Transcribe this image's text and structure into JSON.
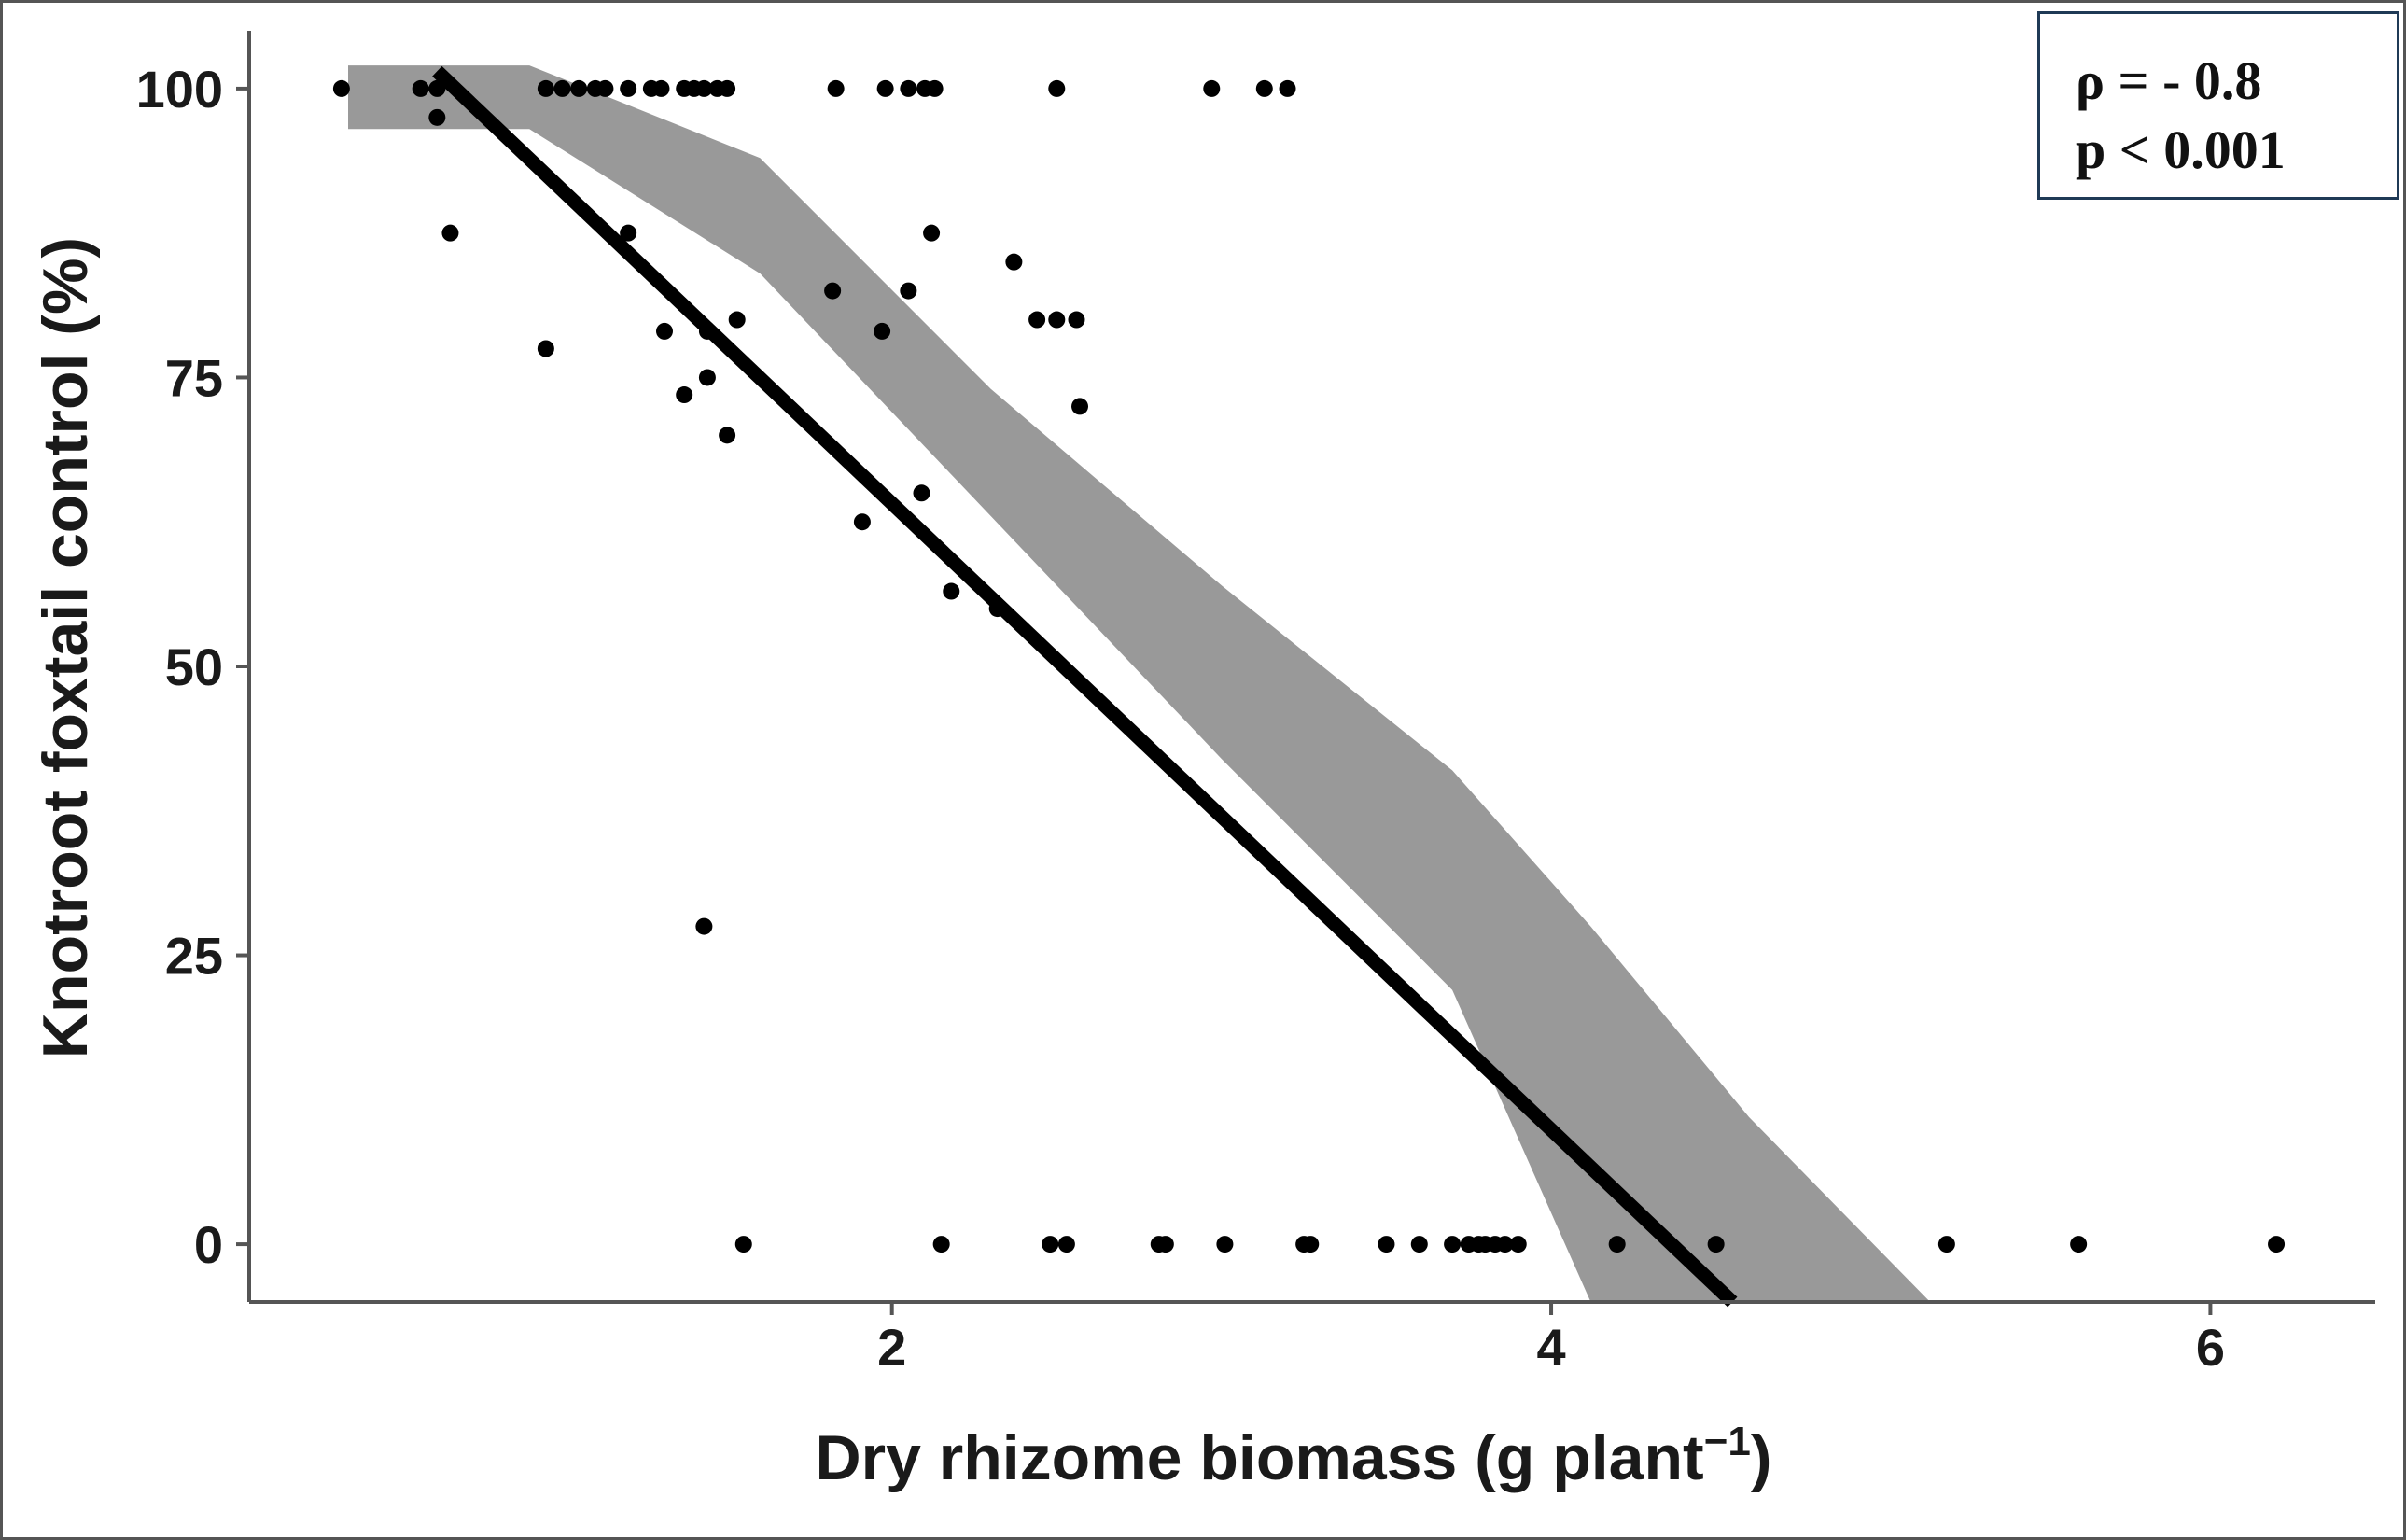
{
  "chart_data": {
    "type": "scatter",
    "title": "",
    "xlabel": "Dry rhizome biomass (g plant",
    "xlabel_superscript": "−1",
    "xlabel_suffix": ")",
    "ylabel": "Knotroot foxtail control (%)",
    "xlim": [
      0.05,
      6.5
    ],
    "ylim": [
      -5,
      105
    ],
    "x_ticks": [
      2,
      4,
      6
    ],
    "y_ticks": [
      0,
      25,
      50,
      75,
      100
    ],
    "x_tick_labels": [
      "2",
      "4",
      "6"
    ],
    "y_tick_labels": [
      "0",
      "25",
      "50",
      "75",
      "100"
    ],
    "grid": false,
    "annotation": {
      "line1": "ρ = - 0.8",
      "line2": "p < 0.001",
      "placement": "top-right"
    },
    "colors": {
      "points": "#000000",
      "fit_line": "#000000",
      "confidence_band": "#999999",
      "axis": "#555555",
      "box_border": "#1f3a56"
    },
    "series": [
      {
        "type": "scatter",
        "x": [
          0.33,
          0.57,
          0.62,
          0.95,
          1.0,
          1.05,
          1.1,
          1.13,
          1.2,
          1.27,
          1.3,
          1.37,
          1.4,
          1.43,
          1.47,
          1.5,
          1.83,
          1.98,
          2.05,
          2.1,
          2.13,
          2.5,
          2.97,
          3.13,
          3.2,
          0.62,
          0.66,
          0.95,
          1.2,
          1.31,
          1.44,
          1.44,
          1.37,
          1.5,
          1.53,
          1.43,
          1.82,
          1.91,
          1.97,
          2.05,
          2.09,
          2.12,
          2.18,
          2.32,
          2.37,
          2.44,
          2.5,
          2.56,
          2.57,
          1.55,
          2.15,
          2.48,
          2.53,
          2.81,
          2.83,
          3.01,
          3.25,
          3.27,
          3.5,
          3.6,
          3.7,
          3.75,
          3.78,
          3.8,
          3.83,
          3.86,
          3.9,
          4.2,
          4.5,
          5.2,
          5.6,
          6.2
        ],
        "y": [
          100,
          100,
          100,
          100,
          100,
          100,
          100,
          100,
          100,
          100,
          100,
          100,
          100,
          100,
          100,
          100,
          100,
          100,
          100,
          100,
          100,
          100,
          100,
          100,
          100,
          97.5,
          87.5,
          77.5,
          87.5,
          79,
          79,
          75,
          73.5,
          70,
          80,
          27.5,
          82.5,
          62.5,
          79,
          82.5,
          65,
          87.5,
          56.5,
          55,
          85,
          80,
          80,
          80,
          72.5,
          0,
          0,
          0,
          0,
          0,
          0,
          0,
          0,
          0,
          0,
          0,
          0,
          0,
          0,
          0,
          0,
          0,
          0,
          0,
          0,
          0,
          0,
          0
        ]
      },
      {
        "type": "line",
        "x": [
          0.62,
          4.55
        ],
        "y": [
          101.5,
          -5
        ]
      },
      {
        "type": "band",
        "x": [
          0.35,
          0.9,
          1.6,
          2.3,
          3.0,
          3.7,
          4.12,
          4.6,
          5.15
        ],
        "lower": [
          96.5,
          96.5,
          84,
          63,
          42,
          22,
          -5,
          -5,
          -5
        ],
        "upper": [
          102,
          102,
          94,
          74,
          57,
          41,
          27.5,
          11,
          -5
        ]
      }
    ]
  }
}
